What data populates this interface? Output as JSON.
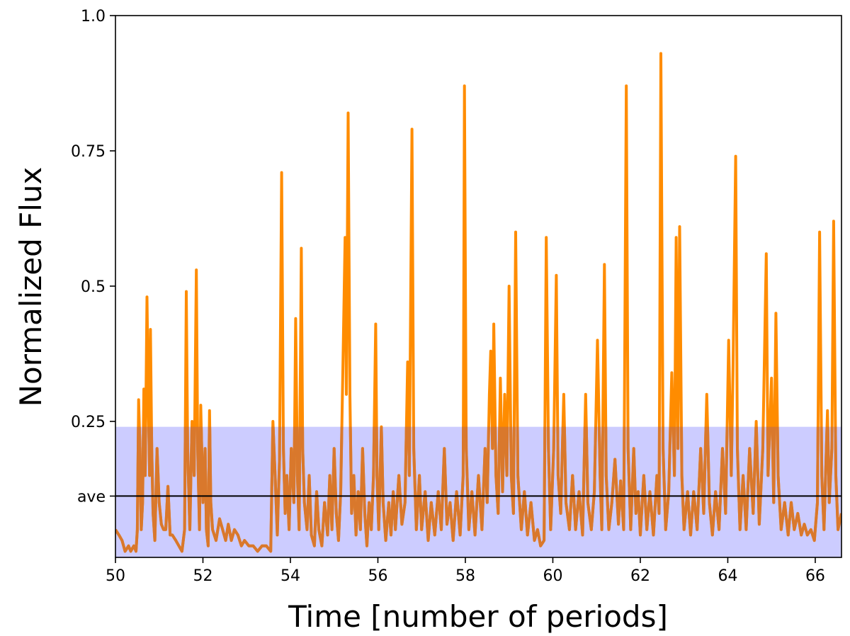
{
  "chart_data": {
    "type": "line",
    "xlabel": "Time [number of periods]",
    "ylabel": "Normalized Flux",
    "xlim": [
      50,
      66.6
    ],
    "ylim": [
      0,
      1.0
    ],
    "x_ticks": [
      {
        "value": 50,
        "label": "50"
      },
      {
        "value": 52,
        "label": "52"
      },
      {
        "value": 54,
        "label": "54"
      },
      {
        "value": 56,
        "label": "56"
      },
      {
        "value": 58,
        "label": "58"
      },
      {
        "value": 60,
        "label": "60"
      },
      {
        "value": 62,
        "label": "62"
      },
      {
        "value": 64,
        "label": "64"
      },
      {
        "value": 66,
        "label": "66"
      }
    ],
    "y_ticks": [
      {
        "value": 0.25,
        "label": "0.25"
      },
      {
        "value": 0.5,
        "label": "0.5"
      },
      {
        "value": 0.75,
        "label": "0.75"
      },
      {
        "value": 1.0,
        "label": "1.0"
      }
    ],
    "average": {
      "value": 0.112,
      "label": "ave"
    },
    "band": {
      "y0": 0,
      "y1": 0.24,
      "color": "#ccccff"
    },
    "series": [
      {
        "color": "#ff8c00",
        "points": [
          [
            50.0,
            0.05
          ],
          [
            50.08,
            0.04
          ],
          [
            50.15,
            0.03
          ],
          [
            50.22,
            0.01
          ],
          [
            50.3,
            0.02
          ],
          [
            50.35,
            0.01
          ],
          [
            50.42,
            0.02
          ],
          [
            50.47,
            0.01
          ],
          [
            50.5,
            0.05
          ],
          [
            50.53,
            0.29
          ],
          [
            50.56,
            0.2
          ],
          [
            50.59,
            0.05
          ],
          [
            50.62,
            0.1
          ],
          [
            50.65,
            0.31
          ],
          [
            50.68,
            0.15
          ],
          [
            50.72,
            0.48
          ],
          [
            50.75,
            0.3
          ],
          [
            50.78,
            0.15
          ],
          [
            50.8,
            0.42
          ],
          [
            50.83,
            0.2
          ],
          [
            50.86,
            0.08
          ],
          [
            50.9,
            0.03
          ],
          [
            50.95,
            0.2
          ],
          [
            51.0,
            0.1
          ],
          [
            51.05,
            0.06
          ],
          [
            51.1,
            0.05
          ],
          [
            51.15,
            0.05
          ],
          [
            51.2,
            0.13
          ],
          [
            51.25,
            0.04
          ],
          [
            51.3,
            0.04
          ],
          [
            51.38,
            0.03
          ],
          [
            51.45,
            0.02
          ],
          [
            51.52,
            0.01
          ],
          [
            51.58,
            0.05
          ],
          [
            51.62,
            0.49
          ],
          [
            51.65,
            0.2
          ],
          [
            51.7,
            0.05
          ],
          [
            51.75,
            0.25
          ],
          [
            51.8,
            0.15
          ],
          [
            51.85,
            0.53
          ],
          [
            51.88,
            0.2
          ],
          [
            51.92,
            0.05
          ],
          [
            51.95,
            0.28
          ],
          [
            52.0,
            0.1
          ],
          [
            52.05,
            0.2
          ],
          [
            52.08,
            0.05
          ],
          [
            52.12,
            0.02
          ],
          [
            52.15,
            0.27
          ],
          [
            52.18,
            0.1
          ],
          [
            52.22,
            0.05
          ],
          [
            52.3,
            0.03
          ],
          [
            52.38,
            0.07
          ],
          [
            52.45,
            0.05
          ],
          [
            52.52,
            0.03
          ],
          [
            52.58,
            0.06
          ],
          [
            52.65,
            0.03
          ],
          [
            52.72,
            0.05
          ],
          [
            52.8,
            0.04
          ],
          [
            52.88,
            0.02
          ],
          [
            52.95,
            0.03
          ],
          [
            53.05,
            0.02
          ],
          [
            53.15,
            0.02
          ],
          [
            53.25,
            0.01
          ],
          [
            53.35,
            0.02
          ],
          [
            53.45,
            0.02
          ],
          [
            53.55,
            0.01
          ],
          [
            53.6,
            0.25
          ],
          [
            53.65,
            0.15
          ],
          [
            53.7,
            0.04
          ],
          [
            53.75,
            0.18
          ],
          [
            53.8,
            0.71
          ],
          [
            53.84,
            0.2
          ],
          [
            53.88,
            0.08
          ],
          [
            53.92,
            0.15
          ],
          [
            53.97,
            0.05
          ],
          [
            54.02,
            0.2
          ],
          [
            54.08,
            0.1
          ],
          [
            54.12,
            0.44
          ],
          [
            54.16,
            0.15
          ],
          [
            54.2,
            0.05
          ],
          [
            54.25,
            0.57
          ],
          [
            54.28,
            0.2
          ],
          [
            54.32,
            0.1
          ],
          [
            54.38,
            0.05
          ],
          [
            54.43,
            0.15
          ],
          [
            54.48,
            0.04
          ],
          [
            54.55,
            0.02
          ],
          [
            54.6,
            0.12
          ],
          [
            54.65,
            0.05
          ],
          [
            54.72,
            0.02
          ],
          [
            54.78,
            0.1
          ],
          [
            54.85,
            0.04
          ],
          [
            54.9,
            0.15
          ],
          [
            54.95,
            0.05
          ],
          [
            55.0,
            0.2
          ],
          [
            55.05,
            0.08
          ],
          [
            55.1,
            0.03
          ],
          [
            55.15,
            0.12
          ],
          [
            55.2,
            0.35
          ],
          [
            55.25,
            0.59
          ],
          [
            55.28,
            0.3
          ],
          [
            55.32,
            0.82
          ],
          [
            55.36,
            0.3
          ],
          [
            55.4,
            0.08
          ],
          [
            55.45,
            0.15
          ],
          [
            55.5,
            0.04
          ],
          [
            55.55,
            0.12
          ],
          [
            55.6,
            0.05
          ],
          [
            55.65,
            0.2
          ],
          [
            55.7,
            0.08
          ],
          [
            55.75,
            0.02
          ],
          [
            55.8,
            0.1
          ],
          [
            55.85,
            0.05
          ],
          [
            55.9,
            0.15
          ],
          [
            55.95,
            0.43
          ],
          [
            55.98,
            0.15
          ],
          [
            56.02,
            0.05
          ],
          [
            56.08,
            0.24
          ],
          [
            56.12,
            0.1
          ],
          [
            56.18,
            0.03
          ],
          [
            56.25,
            0.1
          ],
          [
            56.3,
            0.04
          ],
          [
            56.35,
            0.12
          ],
          [
            56.4,
            0.05
          ],
          [
            56.48,
            0.15
          ],
          [
            56.55,
            0.06
          ],
          [
            56.62,
            0.1
          ],
          [
            56.68,
            0.36
          ],
          [
            56.72,
            0.15
          ],
          [
            56.78,
            0.79
          ],
          [
            56.82,
            0.2
          ],
          [
            56.88,
            0.05
          ],
          [
            56.95,
            0.15
          ],
          [
            57.0,
            0.05
          ],
          [
            57.08,
            0.12
          ],
          [
            57.15,
            0.03
          ],
          [
            57.22,
            0.1
          ],
          [
            57.3,
            0.04
          ],
          [
            57.38,
            0.12
          ],
          [
            57.45,
            0.05
          ],
          [
            57.52,
            0.2
          ],
          [
            57.58,
            0.06
          ],
          [
            57.65,
            0.1
          ],
          [
            57.72,
            0.03
          ],
          [
            57.8,
            0.12
          ],
          [
            57.88,
            0.04
          ],
          [
            57.95,
            0.15
          ],
          [
            57.98,
            0.87
          ],
          [
            58.02,
            0.2
          ],
          [
            58.08,
            0.05
          ],
          [
            58.15,
            0.12
          ],
          [
            58.22,
            0.04
          ],
          [
            58.3,
            0.15
          ],
          [
            58.38,
            0.05
          ],
          [
            58.45,
            0.2
          ],
          [
            58.5,
            0.1
          ],
          [
            58.55,
            0.3
          ],
          [
            58.58,
            0.38
          ],
          [
            58.62,
            0.2
          ],
          [
            58.65,
            0.43
          ],
          [
            58.7,
            0.15
          ],
          [
            58.75,
            0.08
          ],
          [
            58.8,
            0.33
          ],
          [
            58.85,
            0.12
          ],
          [
            58.9,
            0.3
          ],
          [
            58.95,
            0.15
          ],
          [
            59.0,
            0.5
          ],
          [
            59.05,
            0.15
          ],
          [
            59.1,
            0.08
          ],
          [
            59.15,
            0.6
          ],
          [
            59.2,
            0.15
          ],
          [
            59.28,
            0.05
          ],
          [
            59.35,
            0.12
          ],
          [
            59.42,
            0.04
          ],
          [
            59.5,
            0.1
          ],
          [
            59.58,
            0.03
          ],
          [
            59.65,
            0.05
          ],
          [
            59.72,
            0.02
          ],
          [
            59.8,
            0.03
          ],
          [
            59.85,
            0.59
          ],
          [
            59.9,
            0.2
          ],
          [
            59.95,
            0.05
          ],
          [
            60.02,
            0.2
          ],
          [
            60.08,
            0.52
          ],
          [
            60.12,
            0.15
          ],
          [
            60.18,
            0.08
          ],
          [
            60.25,
            0.3
          ],
          [
            60.3,
            0.1
          ],
          [
            60.38,
            0.05
          ],
          [
            60.45,
            0.15
          ],
          [
            60.52,
            0.05
          ],
          [
            60.6,
            0.12
          ],
          [
            60.68,
            0.04
          ],
          [
            60.75,
            0.3
          ],
          [
            60.8,
            0.1
          ],
          [
            60.88,
            0.05
          ],
          [
            60.95,
            0.12
          ],
          [
            61.02,
            0.4
          ],
          [
            61.08,
            0.15
          ],
          [
            61.12,
            0.05
          ],
          [
            61.18,
            0.54
          ],
          [
            61.22,
            0.15
          ],
          [
            61.28,
            0.05
          ],
          [
            61.35,
            0.1
          ],
          [
            61.42,
            0.18
          ],
          [
            61.5,
            0.06
          ],
          [
            61.55,
            0.14
          ],
          [
            61.62,
            0.05
          ],
          [
            61.68,
            0.87
          ],
          [
            61.72,
            0.2
          ],
          [
            61.78,
            0.05
          ],
          [
            61.85,
            0.2
          ],
          [
            61.9,
            0.08
          ],
          [
            61.95,
            0.12
          ],
          [
            62.0,
            0.04
          ],
          [
            62.08,
            0.15
          ],
          [
            62.15,
            0.05
          ],
          [
            62.22,
            0.12
          ],
          [
            62.3,
            0.04
          ],
          [
            62.38,
            0.15
          ],
          [
            62.43,
            0.08
          ],
          [
            62.47,
            0.93
          ],
          [
            62.52,
            0.2
          ],
          [
            62.58,
            0.05
          ],
          [
            62.65,
            0.12
          ],
          [
            62.72,
            0.34
          ],
          [
            62.78,
            0.15
          ],
          [
            62.82,
            0.59
          ],
          [
            62.86,
            0.2
          ],
          [
            62.9,
            0.61
          ],
          [
            62.95,
            0.15
          ],
          [
            63.0,
            0.05
          ],
          [
            63.08,
            0.12
          ],
          [
            63.15,
            0.04
          ],
          [
            63.22,
            0.12
          ],
          [
            63.3,
            0.05
          ],
          [
            63.38,
            0.2
          ],
          [
            63.45,
            0.08
          ],
          [
            63.52,
            0.3
          ],
          [
            63.58,
            0.1
          ],
          [
            63.65,
            0.04
          ],
          [
            63.72,
            0.12
          ],
          [
            63.8,
            0.05
          ],
          [
            63.88,
            0.2
          ],
          [
            63.95,
            0.08
          ],
          [
            64.02,
            0.4
          ],
          [
            64.08,
            0.15
          ],
          [
            64.12,
            0.35
          ],
          [
            64.18,
            0.74
          ],
          [
            64.22,
            0.2
          ],
          [
            64.28,
            0.05
          ],
          [
            64.35,
            0.15
          ],
          [
            64.42,
            0.05
          ],
          [
            64.5,
            0.2
          ],
          [
            64.58,
            0.08
          ],
          [
            64.65,
            0.25
          ],
          [
            64.72,
            0.06
          ],
          [
            64.8,
            0.2
          ],
          [
            64.88,
            0.56
          ],
          [
            64.92,
            0.15
          ],
          [
            65.0,
            0.33
          ],
          [
            65.05,
            0.1
          ],
          [
            65.1,
            0.45
          ],
          [
            65.15,
            0.15
          ],
          [
            65.22,
            0.05
          ],
          [
            65.3,
            0.1
          ],
          [
            65.38,
            0.04
          ],
          [
            65.45,
            0.1
          ],
          [
            65.52,
            0.05
          ],
          [
            65.6,
            0.08
          ],
          [
            65.68,
            0.04
          ],
          [
            65.75,
            0.06
          ],
          [
            65.82,
            0.04
          ],
          [
            65.9,
            0.05
          ],
          [
            65.98,
            0.03
          ],
          [
            66.05,
            0.1
          ],
          [
            66.1,
            0.6
          ],
          [
            66.15,
            0.15
          ],
          [
            66.2,
            0.05
          ],
          [
            66.28,
            0.27
          ],
          [
            66.32,
            0.1
          ],
          [
            66.38,
            0.2
          ],
          [
            66.42,
            0.62
          ],
          [
            66.47,
            0.15
          ],
          [
            66.52,
            0.05
          ],
          [
            66.6,
            0.08
          ]
        ]
      }
    ]
  }
}
